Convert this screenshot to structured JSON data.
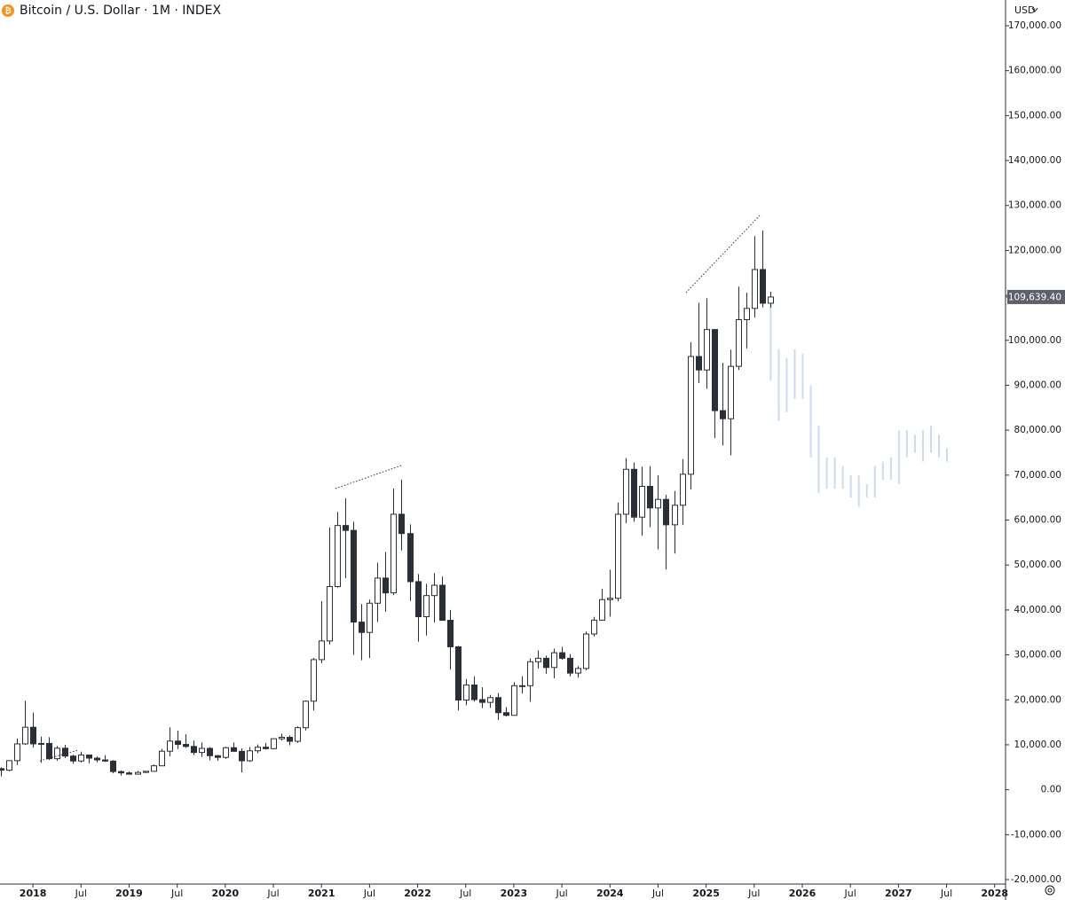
{
  "chart_data": {
    "type": "candlestick",
    "title": "Bitcoin / U.S. Dollar · 1M · INDEX",
    "currency": "USD",
    "x": [
      "2017-09",
      "2017-10",
      "2017-11",
      "2017-12",
      "2018-01",
      "2018-02",
      "2018-03",
      "2018-04",
      "2018-05",
      "2018-06",
      "2018-07",
      "2018-08",
      "2018-09",
      "2018-10",
      "2018-11",
      "2018-12",
      "2019-01",
      "2019-02",
      "2019-03",
      "2019-04",
      "2019-05",
      "2019-06",
      "2019-07",
      "2019-08",
      "2019-09",
      "2019-10",
      "2019-11",
      "2019-12",
      "2020-01",
      "2020-02",
      "2020-03",
      "2020-04",
      "2020-05",
      "2020-06",
      "2020-07",
      "2020-08",
      "2020-09",
      "2020-10",
      "2020-11",
      "2020-12",
      "2021-01",
      "2021-02",
      "2021-03",
      "2021-04",
      "2021-05",
      "2021-06",
      "2021-07",
      "2021-08",
      "2021-09",
      "2021-10",
      "2021-11",
      "2021-12",
      "2022-01",
      "2022-02",
      "2022-03",
      "2022-04",
      "2022-05",
      "2022-06",
      "2022-07",
      "2022-08",
      "2022-09",
      "2022-10",
      "2022-11",
      "2022-12",
      "2023-01",
      "2023-02",
      "2023-03",
      "2023-04",
      "2023-05",
      "2023-06",
      "2023-07",
      "2023-08",
      "2023-09",
      "2023-10",
      "2023-11",
      "2023-12",
      "2024-01",
      "2024-02",
      "2024-03",
      "2024-04",
      "2024-05",
      "2024-06",
      "2024-07",
      "2024-08",
      "2024-09",
      "2024-10",
      "2024-11",
      "2024-12",
      "2025-01",
      "2025-02",
      "2025-03",
      "2025-04",
      "2025-05",
      "2025-06",
      "2025-07",
      "2025-08",
      "2025-09"
    ],
    "open": [
      4700,
      4340,
      6470,
      10200,
      13900,
      10200,
      10300,
      6900,
      9240,
      7490,
      6390,
      7730,
      7030,
      6630,
      6370,
      4040,
      3740,
      3460,
      3850,
      4100,
      5320,
      8570,
      10820,
      10080,
      9630,
      8290,
      9200,
      7570,
      7190,
      9350,
      8540,
      6440,
      8660,
      9460,
      9140,
      11350,
      11660,
      10780,
      13800,
      19700,
      28950,
      33100,
      45200,
      58800,
      57700,
      37300,
      35000,
      41500,
      47100,
      43800,
      61300,
      57000,
      46300,
      38500,
      43200,
      45500,
      37700,
      31800,
      19950,
      23300,
      20050,
      19430,
      20500,
      17150,
      16550,
      23150,
      23150,
      28480,
      29250,
      27200,
      30480,
      29250,
      25950,
      26980,
      34650,
      37730,
      42300,
      42600,
      61300,
      71300,
      60650,
      67500,
      62700,
      64600,
      58950,
      63300,
      70200,
      96400,
      93400,
      102400,
      84350,
      82550,
      94200,
      104600,
      107100,
      115750,
      108250
    ],
    "high": [
      4990,
      6470,
      11400,
      19800,
      17200,
      11800,
      11700,
      9750,
      9990,
      7760,
      8490,
      7750,
      7400,
      7680,
      6580,
      4300,
      4100,
      4190,
      4140,
      5600,
      9090,
      13880,
      13150,
      12330,
      10900,
      10540,
      9500,
      7750,
      9580,
      10500,
      9190,
      9470,
      10070,
      10400,
      11450,
      12480,
      12080,
      14100,
      19860,
      29300,
      41950,
      58350,
      61800,
      64850,
      59600,
      41300,
      42300,
      50500,
      52900,
      67000,
      69000,
      59050,
      47990,
      45800,
      48200,
      47450,
      40000,
      31980,
      24650,
      25200,
      22800,
      21100,
      21500,
      18400,
      23950,
      25250,
      29200,
      31000,
      29850,
      31400,
      31800,
      30200,
      27500,
      35200,
      38450,
      44700,
      48950,
      63900,
      73800,
      72800,
      71900,
      72000,
      70000,
      65600,
      66500,
      73600,
      99600,
      108350,
      109350,
      102500,
      95000,
      97900,
      111950,
      110600,
      123200,
      124450,
      110800
    ],
    "low": [
      2980,
      4110,
      5500,
      10000,
      9400,
      6000,
      6600,
      6450,
      7050,
      5780,
      6070,
      5880,
      6100,
      6200,
      3650,
      3130,
      3350,
      3390,
      3730,
      4080,
      5320,
      7450,
      9080,
      9320,
      7730,
      7300,
      6520,
      6430,
      6870,
      8500,
      3850,
      6200,
      8120,
      8940,
      8990,
      10950,
      9880,
      10420,
      13200,
      17600,
      28130,
      32300,
      44950,
      47050,
      30000,
      28800,
      29300,
      37350,
      39600,
      43300,
      53250,
      42000,
      32950,
      34300,
      37200,
      37700,
      26700,
      17600,
      18800,
      19600,
      18150,
      18200,
      15500,
      16300,
      16500,
      21400,
      19550,
      26950,
      25800,
      24800,
      28900,
      25200,
      24900,
      26550,
      34100,
      37650,
      38500,
      41900,
      59300,
      59600,
      56500,
      58400,
      53500,
      49000,
      52550,
      58900,
      66800,
      90500,
      89200,
      78250,
      76600,
      74400,
      93400,
      98200,
      105100,
      107300,
      107250
    ],
    "close": [
      4340,
      6470,
      10200,
      13900,
      10200,
      10300,
      6900,
      9240,
      7490,
      6390,
      7730,
      7030,
      6630,
      6370,
      4040,
      3740,
      3460,
      3850,
      4100,
      5320,
      8570,
      10820,
      10080,
      9630,
      8290,
      9200,
      7570,
      7190,
      9350,
      8540,
      6440,
      8660,
      9460,
      9140,
      11350,
      11660,
      10780,
      13800,
      19700,
      28950,
      33100,
      45200,
      58800,
      57700,
      37300,
      35000,
      41500,
      47100,
      43800,
      61300,
      57000,
      46300,
      38500,
      43200,
      45500,
      37700,
      31800,
      19950,
      23300,
      20050,
      19430,
      20500,
      17150,
      16550,
      23150,
      23150,
      28480,
      29250,
      27200,
      30480,
      29250,
      25950,
      26980,
      34650,
      37730,
      42300,
      42600,
      61300,
      71300,
      60650,
      67500,
      62700,
      64600,
      58950,
      63300,
      70200,
      96400,
      93400,
      102400,
      84350,
      82550,
      94200,
      104600,
      107100,
      115750,
      108250,
      109639.4
    ],
    "up_color": "#ffffff",
    "down_color": "#2a2e39",
    "last_price": {
      "value": 109639.4,
      "label": "109,639.40"
    },
    "projection": {
      "color": "#c9dcf2",
      "x": [
        "2025-09",
        "2025-10",
        "2025-11",
        "2025-12",
        "2026-01",
        "2026-02",
        "2026-03",
        "2026-04",
        "2026-05",
        "2026-06",
        "2026-07",
        "2026-08",
        "2026-09",
        "2026-10",
        "2026-11",
        "2026-12",
        "2027-01",
        "2027-02",
        "2027-03",
        "2027-04",
        "2027-05",
        "2027-06",
        "2027-07"
      ],
      "high": [
        108800,
        98000,
        96000,
        98000,
        97000,
        90000,
        81000,
        74000,
        74000,
        72000,
        70000,
        70000,
        68000,
        72000,
        73000,
        74000,
        80000,
        80000,
        79000,
        80000,
        81000,
        79000,
        76000
      ],
      "low": [
        91000,
        82000,
        84000,
        87000,
        87000,
        74000,
        66000,
        67000,
        67000,
        67000,
        65000,
        63000,
        65000,
        65000,
        69000,
        69000,
        68000,
        74000,
        75000,
        73000,
        75000,
        74000,
        73000
      ]
    },
    "ylim": [
      -20000,
      170000
    ],
    "yticks": [
      {
        "value": -20000,
        "label": "-20,000.00"
      },
      {
        "value": -10000,
        "label": "-10,000.00"
      },
      {
        "value": 0,
        "label": "0.00"
      },
      {
        "value": 10000,
        "label": "10,000.00"
      },
      {
        "value": 20000,
        "label": "20,000.00"
      },
      {
        "value": 30000,
        "label": "30,000.00"
      },
      {
        "value": 40000,
        "label": "40,000.00"
      },
      {
        "value": 50000,
        "label": "50,000.00"
      },
      {
        "value": 60000,
        "label": "60,000.00"
      },
      {
        "value": 70000,
        "label": "70,000.00"
      },
      {
        "value": 80000,
        "label": "80,000.00"
      },
      {
        "value": 90000,
        "label": "90,000.00"
      },
      {
        "value": 100000,
        "label": "100,000.00"
      },
      {
        "value": 110000,
        "label": "110,000.00"
      },
      {
        "value": 120000,
        "label": "120,000.00"
      },
      {
        "value": 130000,
        "label": "130,000.00"
      },
      {
        "value": 140000,
        "label": "140,000.00"
      },
      {
        "value": 150000,
        "label": "150,000.00"
      },
      {
        "value": 160000,
        "label": "160,000.00"
      },
      {
        "value": 170000,
        "label": "170,000.00"
      }
    ],
    "xticks": [
      {
        "value": "2018-01",
        "label": "2018"
      },
      {
        "value": "2018-07",
        "label": "Jul"
      },
      {
        "value": "2019-01",
        "label": "2019"
      },
      {
        "value": "2019-07",
        "label": "Jul"
      },
      {
        "value": "2020-01",
        "label": "2020"
      },
      {
        "value": "2020-07",
        "label": "Jul"
      },
      {
        "value": "2021-01",
        "label": "2021"
      },
      {
        "value": "2021-07",
        "label": "Jul"
      },
      {
        "value": "2022-01",
        "label": "2022"
      },
      {
        "value": "2022-07",
        "label": "Jul"
      },
      {
        "value": "2023-01",
        "label": "2023"
      },
      {
        "value": "2023-07",
        "label": "Jul"
      },
      {
        "value": "2024-01",
        "label": "2024"
      },
      {
        "value": "2024-07",
        "label": "Jul"
      },
      {
        "value": "2025-01",
        "label": "2025"
      },
      {
        "value": "2025-07",
        "label": "Jul"
      },
      {
        "value": "2026-01",
        "label": "2026"
      },
      {
        "value": "2026-07",
        "label": "Jul"
      },
      {
        "value": "2027-01",
        "label": "2027"
      },
      {
        "value": "2027-07",
        "label": "Jul"
      },
      {
        "value": "2028-01",
        "label": "2028"
      }
    ]
  }
}
